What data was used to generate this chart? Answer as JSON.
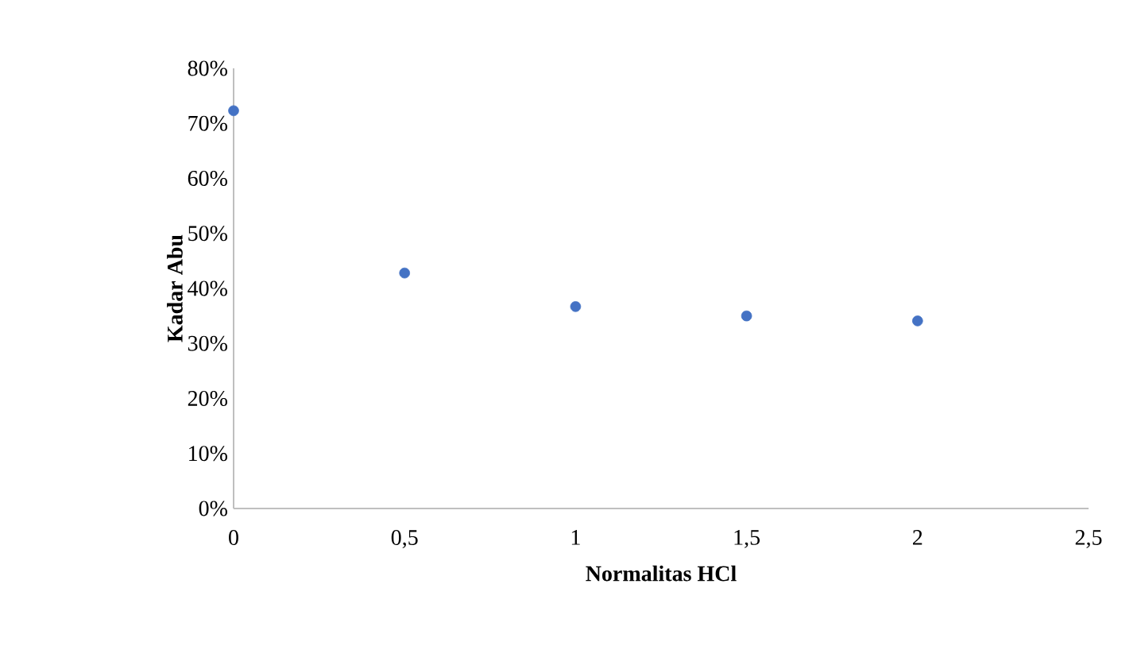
{
  "chart_data": {
    "type": "scatter",
    "xlabel": "Normalitas HCl",
    "ylabel": "Kadar Abu",
    "x": [
      0,
      0.5,
      1,
      1.5,
      2
    ],
    "series": [
      {
        "color": "#4472c4",
        "values": [
          72.3,
          42.8,
          36.7,
          35.0,
          34.1
        ]
      }
    ],
    "xlim": [
      0,
      2.5
    ],
    "ylim": [
      0,
      80
    ],
    "xticks": [
      0,
      {
        "value": 0.5,
        "label": "0,5"
      },
      1,
      {
        "value": 1.5,
        "label": "1,5"
      },
      2,
      {
        "value": 2.5,
        "label": "2,5"
      }
    ],
    "yticks": [
      {
        "value": 0,
        "label": "0%"
      },
      {
        "value": 10,
        "label": "10%"
      },
      {
        "value": 20,
        "label": "20%"
      },
      {
        "value": 30,
        "label": "30%"
      },
      {
        "value": 40,
        "label": "40%"
      },
      {
        "value": 50,
        "label": "50%"
      },
      {
        "value": 60,
        "label": "60%"
      },
      {
        "value": 70,
        "label": "70%"
      },
      {
        "value": 80,
        "label": "80%"
      }
    ],
    "marker": "circle",
    "grid": false
  }
}
